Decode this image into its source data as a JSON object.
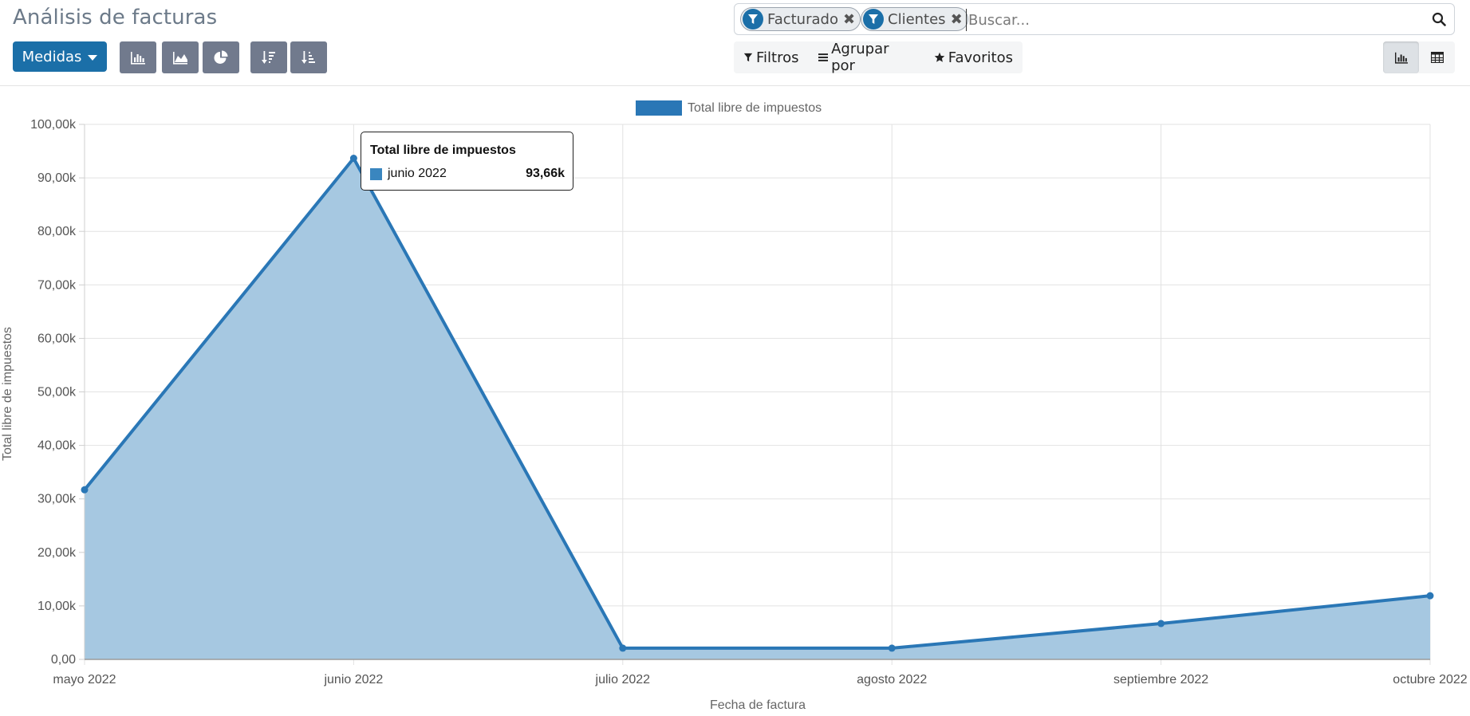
{
  "header": {
    "title": "Análisis de facturas",
    "measures_label": "Medidas"
  },
  "search": {
    "facets": [
      {
        "label": "Facturado",
        "icon": "filter-icon"
      },
      {
        "label": "Clientes",
        "icon": "filter-icon"
      }
    ],
    "placeholder": "Buscar...",
    "search_icon": "magnifier-icon"
  },
  "filters": {
    "filters_label": "Filtros",
    "group_by_label": "Agrupar por",
    "favorites_label": "Favoritos"
  },
  "toolbar_icons": [
    "bar-chart-icon",
    "area-chart-icon",
    "pie-chart-icon",
    "sort-descending-icon",
    "sort-ascending-icon"
  ],
  "view_switch": [
    "graph-view-icon",
    "pivot-view-icon"
  ],
  "colors": {
    "primary": "#1b6fa8",
    "series_line": "#2a77b6",
    "series_fill": "#a6c8e1",
    "icon_button": "#717a8d"
  },
  "tooltip": {
    "title": "Total libre de impuestos",
    "label": "junio 2022",
    "value": "93,66k"
  },
  "chart_data": {
    "type": "area",
    "title": "",
    "xlabel": "Fecha de factura",
    "ylabel": "Total libre de impuestos",
    "legend": "top-center",
    "grid": true,
    "categories": [
      "mayo 2022",
      "junio 2022",
      "julio 2022",
      "agosto 2022",
      "septiembre 2022",
      "octubre 2022"
    ],
    "series": [
      {
        "name": "Total libre de impuestos",
        "values": [
          31700,
          93660,
          2100,
          2100,
          6700,
          11900
        ]
      }
    ],
    "ylim": [
      0,
      100000
    ],
    "yticks": [
      0,
      10000,
      20000,
      30000,
      40000,
      50000,
      60000,
      70000,
      80000,
      90000,
      100000
    ],
    "ytick_labels": [
      "0,00",
      "10,00k",
      "20,00k",
      "30,00k",
      "40,00k",
      "50,00k",
      "60,00k",
      "70,00k",
      "80,00k",
      "90,00k",
      "100,00k"
    ]
  }
}
